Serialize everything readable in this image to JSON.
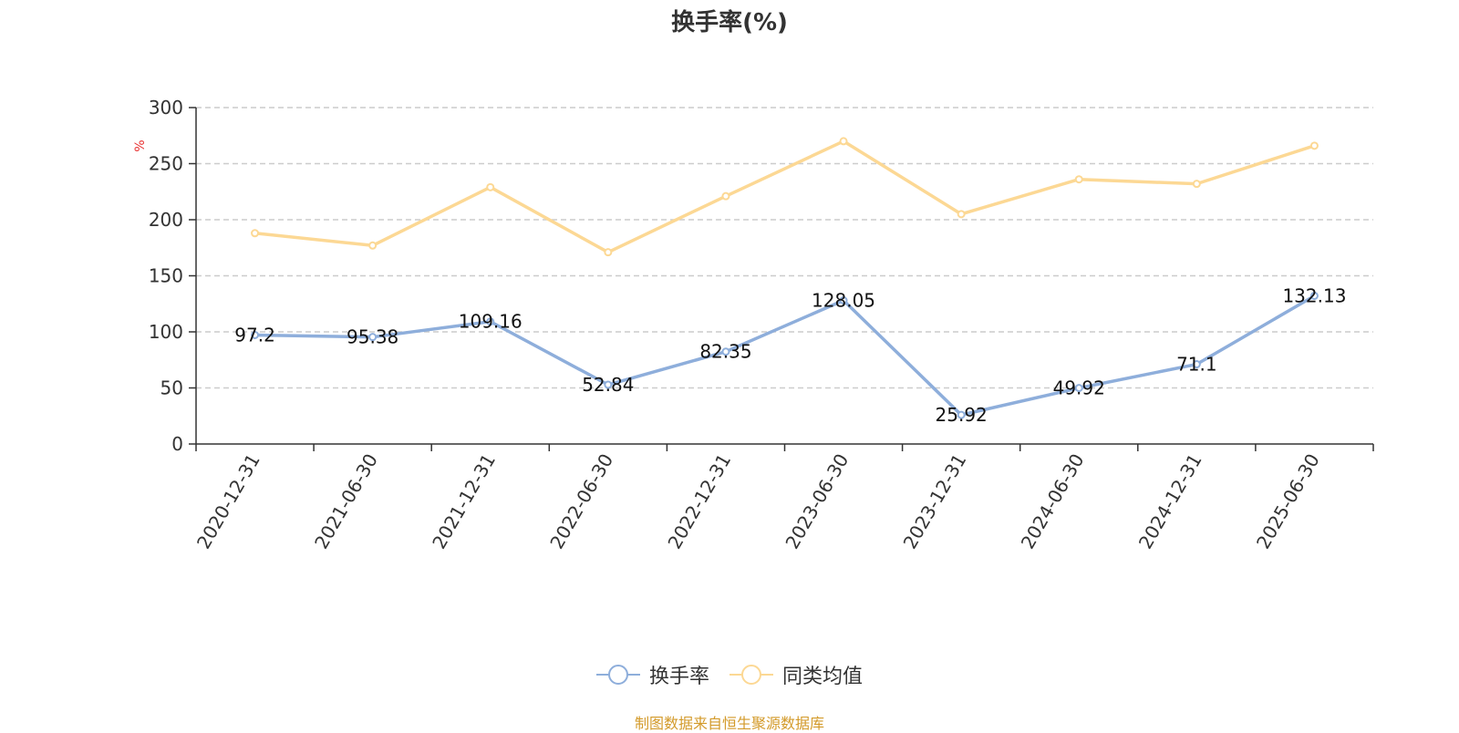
{
  "chart_data": {
    "type": "line",
    "title": "换手率(%)",
    "ylabel": "%",
    "xlabel": "",
    "categories": [
      "2020-12-31",
      "2021-06-30",
      "2021-12-31",
      "2022-06-30",
      "2022-12-31",
      "2023-06-30",
      "2023-12-31",
      "2024-06-30",
      "2024-12-31",
      "2025-06-30"
    ],
    "ylim": [
      0,
      300
    ],
    "yticks": [
      0,
      50,
      100,
      150,
      200,
      250,
      300
    ],
    "grid": true,
    "legend_position": "bottom",
    "series": [
      {
        "name": "换手率",
        "color": "#8eaedb",
        "show_labels": true,
        "values": [
          97.2,
          95.38,
          109.16,
          52.84,
          82.35,
          128.05,
          25.92,
          49.92,
          71.1,
          132.13
        ],
        "labels": [
          "97.2",
          "95.38",
          "109.16",
          "52.84",
          "82.35",
          "128.05",
          "25.92",
          "49.92",
          "71.1",
          "132.13"
        ]
      },
      {
        "name": "同类均值",
        "color": "#fcd894",
        "show_labels": false,
        "values": [
          188,
          177,
          229,
          171,
          221,
          270,
          205,
          236,
          232,
          266
        ]
      }
    ]
  },
  "source_text": "制图数据来自恒生聚源数据库",
  "colors": {
    "title": "#333333",
    "axis": "#333333",
    "grid": "#cccccc",
    "ylabel": "#e83030",
    "source": "#d39a2a"
  }
}
